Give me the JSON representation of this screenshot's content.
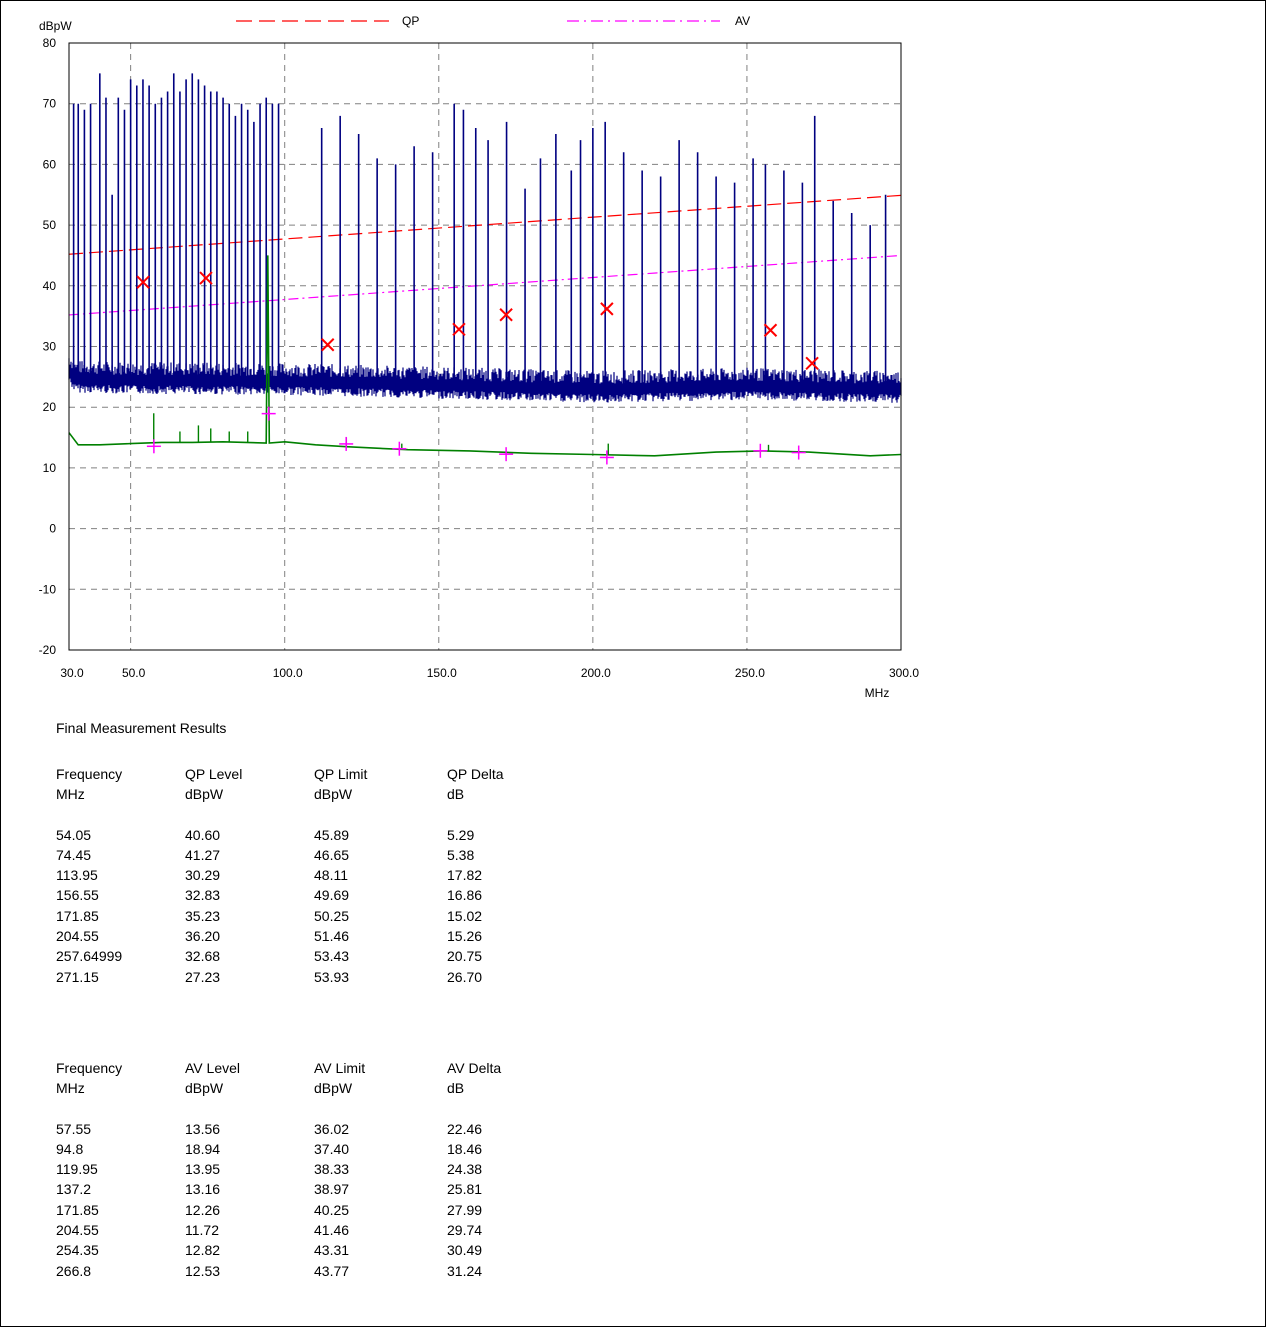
{
  "chart_data": {
    "type": "line",
    "ylabel": "dBpW",
    "xunit": "MHz",
    "xlim": [
      30.0,
      300.0
    ],
    "ylim": [
      -20,
      80
    ],
    "yticks": [
      80,
      70,
      60,
      50,
      40,
      30,
      20,
      10,
      0,
      -10,
      -20
    ],
    "xticks": [
      {
        "value": 30.0,
        "label": "30.0"
      },
      {
        "value": 50.0,
        "label": "50.0"
      },
      {
        "value": 100.0,
        "label": "100.0"
      },
      {
        "value": 150.0,
        "label": "150.0"
      },
      {
        "value": 200.0,
        "label": "200.0"
      },
      {
        "value": 250.0,
        "label": "250.0"
      },
      {
        "value": 300.0,
        "label": "300.0"
      }
    ],
    "grid": true,
    "legend_position": "top",
    "legend": [
      {
        "name": "QP",
        "color": "#ff0000",
        "style": "dashed"
      },
      {
        "name": "AV",
        "color": "#ff00ff",
        "style": "dash-dot"
      }
    ],
    "limit_lines": [
      {
        "name": "QP",
        "color": "#ff0000",
        "x": [
          30,
          300
        ],
        "y": [
          45.2,
          54.9
        ]
      },
      {
        "name": "AV",
        "color": "#ff00ff",
        "x": [
          30,
          300
        ],
        "y": [
          35.2,
          45.0
        ]
      }
    ],
    "traces": {
      "peak_color": "#000080",
      "peak_floor_points": [
        [
          30,
          26.5
        ],
        [
          32,
          25.0
        ],
        [
          50,
          24.8
        ],
        [
          100,
          24.6
        ],
        [
          150,
          24.0
        ],
        [
          200,
          23.3
        ],
        [
          250,
          23.8
        ],
        [
          300,
          23.3
        ]
      ],
      "peak_spikes": [
        [
          31.5,
          70
        ],
        [
          33,
          70
        ],
        [
          35,
          69
        ],
        [
          37,
          70
        ],
        [
          40,
          75
        ],
        [
          42,
          71
        ],
        [
          44,
          55
        ],
        [
          46,
          71
        ],
        [
          48,
          69
        ],
        [
          50,
          74
        ],
        [
          52,
          73
        ],
        [
          54,
          74
        ],
        [
          56,
          73
        ],
        [
          58,
          70
        ],
        [
          60,
          71
        ],
        [
          62,
          72
        ],
        [
          64,
          75
        ],
        [
          66,
          72
        ],
        [
          68,
          74
        ],
        [
          70,
          75
        ],
        [
          72,
          74
        ],
        [
          74,
          73
        ],
        [
          76,
          72
        ],
        [
          78,
          72
        ],
        [
          80,
          71
        ],
        [
          82,
          70
        ],
        [
          84,
          68
        ],
        [
          86,
          70
        ],
        [
          88,
          69
        ],
        [
          90,
          67
        ],
        [
          92,
          70
        ],
        [
          94,
          71
        ],
        [
          96,
          70
        ],
        [
          98,
          70
        ],
        [
          112,
          66
        ],
        [
          118,
          68
        ],
        [
          124,
          65
        ],
        [
          130,
          61
        ],
        [
          136,
          60
        ],
        [
          142,
          63
        ],
        [
          148,
          62
        ],
        [
          155,
          70
        ],
        [
          158,
          69
        ],
        [
          162,
          66
        ],
        [
          166,
          64
        ],
        [
          172,
          67
        ],
        [
          178,
          56
        ],
        [
          183,
          61
        ],
        [
          188,
          65
        ],
        [
          193,
          59
        ],
        [
          196,
          64
        ],
        [
          200,
          66
        ],
        [
          204,
          67
        ],
        [
          210,
          62
        ],
        [
          216,
          59
        ],
        [
          222,
          58
        ],
        [
          228,
          64
        ],
        [
          234,
          62
        ],
        [
          240,
          58
        ],
        [
          246,
          57
        ],
        [
          252,
          61
        ],
        [
          256,
          60
        ],
        [
          262,
          59
        ],
        [
          268,
          57
        ],
        [
          272,
          68
        ],
        [
          278,
          54
        ],
        [
          284,
          52
        ],
        [
          290,
          50
        ],
        [
          295,
          55
        ]
      ],
      "av_color": "#008000",
      "av_points": [
        [
          30,
          15.8
        ],
        [
          33,
          13.8
        ],
        [
          40,
          13.8
        ],
        [
          50,
          14.0
        ],
        [
          60,
          14.2
        ],
        [
          70,
          14.2
        ],
        [
          80,
          14.3
        ],
        [
          94,
          14.1
        ],
        [
          94.5,
          45
        ],
        [
          95,
          14.1
        ],
        [
          100,
          14.3
        ],
        [
          110,
          13.8
        ],
        [
          120,
          13.5
        ],
        [
          140,
          13.0
        ],
        [
          160,
          12.8
        ],
        [
          180,
          12.4
        ],
        [
          200,
          12.2
        ],
        [
          220,
          12.0
        ],
        [
          240,
          12.6
        ],
        [
          255,
          12.8
        ],
        [
          270,
          12.6
        ],
        [
          290,
          12.0
        ],
        [
          300,
          12.2
        ]
      ],
      "av_spikes": [
        [
          57.5,
          19
        ],
        [
          66,
          16
        ],
        [
          72,
          17
        ],
        [
          76,
          16.5
        ],
        [
          82,
          16
        ],
        [
          88,
          16
        ],
        [
          120,
          15
        ],
        [
          138,
          14
        ],
        [
          205,
          14
        ],
        [
          257,
          13.8
        ]
      ]
    },
    "qp_markers": [
      [
        54.05,
        40.6
      ],
      [
        74.45,
        41.27
      ],
      [
        113.95,
        30.29
      ],
      [
        156.55,
        32.83
      ],
      [
        171.85,
        35.23
      ],
      [
        204.55,
        36.2
      ],
      [
        257.64999,
        32.68
      ],
      [
        271.15,
        27.23
      ]
    ],
    "av_markers": [
      [
        57.55,
        13.56
      ],
      [
        94.8,
        18.94
      ],
      [
        119.95,
        13.95
      ],
      [
        137.2,
        13.16
      ],
      [
        171.85,
        12.26
      ],
      [
        204.55,
        11.72
      ],
      [
        254.35,
        12.82
      ],
      [
        266.8,
        12.53
      ]
    ]
  },
  "results": {
    "title": "Final Measurement Results",
    "qp": {
      "header": [
        "Frequency",
        "QP Level",
        "QP Limit",
        "QP Delta"
      ],
      "units": [
        "MHz",
        "dBpW",
        "dBpW",
        "dB"
      ],
      "rows": [
        [
          "54.05",
          "40.60",
          "45.89",
          "5.29"
        ],
        [
          "74.45",
          "41.27",
          "46.65",
          "5.38"
        ],
        [
          "113.95",
          "30.29",
          "48.11",
          "17.82"
        ],
        [
          "156.55",
          "32.83",
          "49.69",
          "16.86"
        ],
        [
          "171.85",
          "35.23",
          "50.25",
          "15.02"
        ],
        [
          "204.55",
          "36.20",
          "51.46",
          "15.26"
        ],
        [
          "257.64999",
          "32.68",
          "53.43",
          "20.75"
        ],
        [
          "271.15",
          "27.23",
          "53.93",
          "26.70"
        ]
      ]
    },
    "av": {
      "header": [
        "Frequency",
        "AV Level",
        "AV Limit",
        "AV Delta"
      ],
      "units": [
        "MHz",
        "dBpW",
        "dBpW",
        "dB"
      ],
      "rows": [
        [
          "57.55",
          "13.56",
          "36.02",
          "22.46"
        ],
        [
          "94.8",
          "18.94",
          "37.40",
          "18.46"
        ],
        [
          "119.95",
          "13.95",
          "38.33",
          "24.38"
        ],
        [
          "137.2",
          "13.16",
          "38.97",
          "25.81"
        ],
        [
          "171.85",
          "12.26",
          "40.25",
          "27.99"
        ],
        [
          "204.55",
          "11.72",
          "41.46",
          "29.74"
        ],
        [
          "254.35",
          "12.82",
          "43.31",
          "30.49"
        ],
        [
          "266.8",
          "12.53",
          "43.77",
          "31.24"
        ]
      ]
    }
  }
}
